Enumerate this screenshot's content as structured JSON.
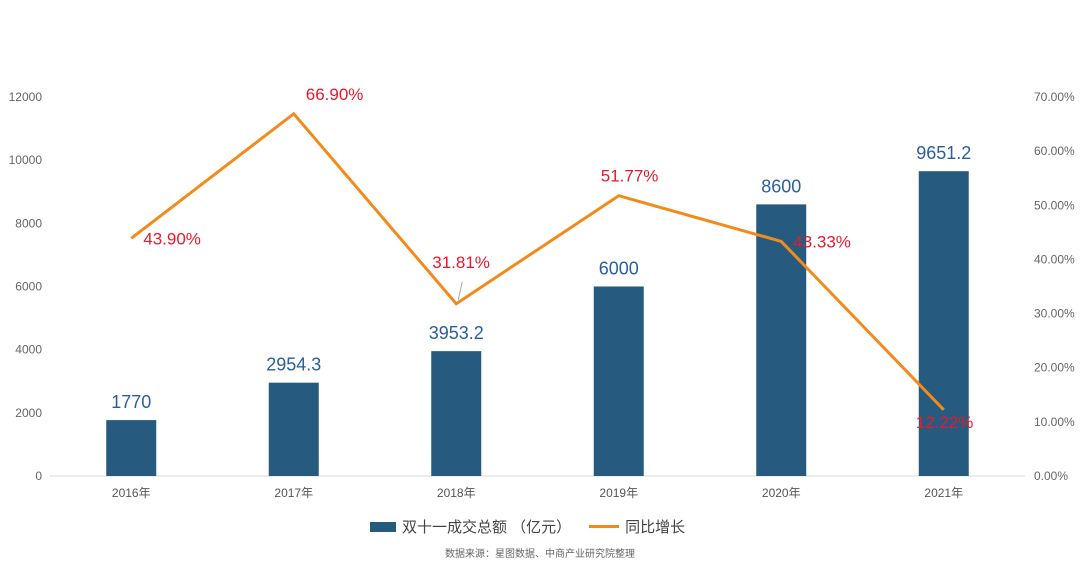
{
  "chart_data": {
    "type": "bar+line",
    "title": "",
    "categories": [
      "2016年",
      "2017年",
      "2018年",
      "2019年",
      "2020年",
      "2021年"
    ],
    "series": [
      {
        "name": "双十一成交总额 （亿元）",
        "type": "bar",
        "axis": "left",
        "color": "#265a7f",
        "values": [
          1770,
          2954.3,
          3953.2,
          6000,
          8600,
          9651.2
        ],
        "labels": [
          "1770",
          "2954.3",
          "3953.2",
          "6000",
          "8600",
          "9651.2"
        ]
      },
      {
        "name": "同比增长",
        "type": "line",
        "axis": "right",
        "color": "#f28b1c",
        "values": [
          43.9,
          66.9,
          31.81,
          51.77,
          43.33,
          12.22
        ],
        "labels": [
          "43.90%",
          "66.90%",
          "31.81%",
          "51.77%",
          "43.33%",
          "12.22%"
        ]
      }
    ],
    "left_axis": {
      "ylim": [
        0,
        12000
      ],
      "ticks": [
        "0",
        "2000",
        "4000",
        "6000",
        "8000",
        "10000",
        "12000"
      ]
    },
    "right_axis": {
      "ylim": [
        0,
        70
      ],
      "ticks": [
        "0.00%",
        "10.00%",
        "20.00%",
        "30.00%",
        "40.00%",
        "50.00%",
        "60.00%",
        "70.00%"
      ]
    },
    "grid": false,
    "legend_position": "bottom"
  },
  "legend": {
    "bar_label": "双十一成交总额 （亿元）",
    "line_label": "同比增长"
  },
  "source": "数据来源：星图数据、中商产业研究院整理"
}
